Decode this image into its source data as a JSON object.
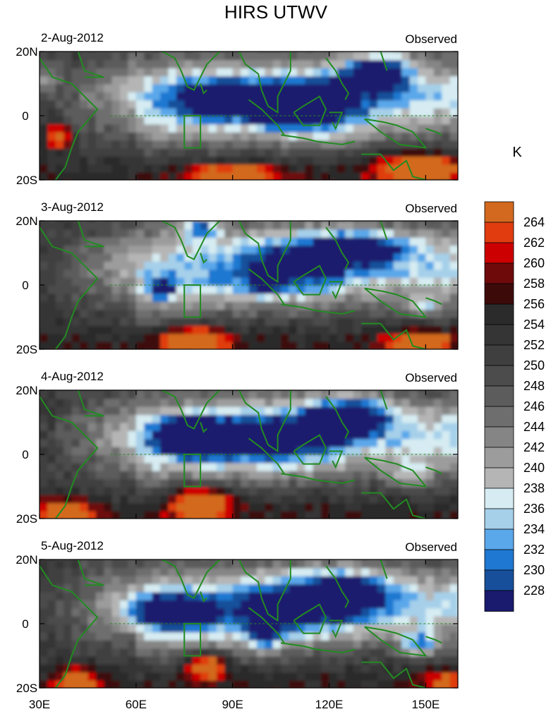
{
  "figure": {
    "title": "HIRS UTWV",
    "colorbar_unit": "K"
  },
  "chart_data": {
    "type": "heatmap",
    "title": "HIRS UTWV",
    "x_axis": {
      "range": [
        30,
        160
      ],
      "ticks": [
        30,
        60,
        90,
        120,
        150
      ],
      "tick_labels": [
        "30E",
        "60E",
        "90E",
        "120E",
        "150E"
      ]
    },
    "y_axis": {
      "range": [
        -20,
        20
      ],
      "ticks": [
        20,
        0,
        -20
      ],
      "tick_labels": [
        "20N",
        "0",
        "20S"
      ]
    },
    "colorbar": {
      "unit": "K",
      "levels": [
        228,
        230,
        232,
        234,
        236,
        238,
        240,
        242,
        244,
        246,
        248,
        250,
        252,
        254,
        256,
        258,
        260,
        262,
        264
      ],
      "colors": [
        "#1a1a6e",
        "#174f9a",
        "#1f78d1",
        "#5aa7ea",
        "#a6d0ea",
        "#d6ecf2",
        "#b5b5b5",
        "#9c9c9c",
        "#858585",
        "#6e6e6e",
        "#5c5c5c",
        "#4c4c4c",
        "#3f3f3f",
        "#353535",
        "#2b2b2b",
        "#3d0a0a",
        "#6e0a0a",
        "#cc0000",
        "#e03c10",
        "#d2691e"
      ]
    },
    "panels": [
      {
        "date": "2-Aug-2012",
        "label": "Observed",
        "seed": 1
      },
      {
        "date": "3-Aug-2012",
        "label": "Observed",
        "seed": 2
      },
      {
        "date": "4-Aug-2012",
        "label": "Observed",
        "seed": 3
      },
      {
        "date": "5-Aug-2012",
        "label": "Observed",
        "seed": 4
      }
    ],
    "box_region": {
      "lon": [
        75,
        80
      ],
      "lat": [
        -10,
        0
      ]
    },
    "equator_line": "dashed",
    "coastline_color": "#228b22"
  }
}
